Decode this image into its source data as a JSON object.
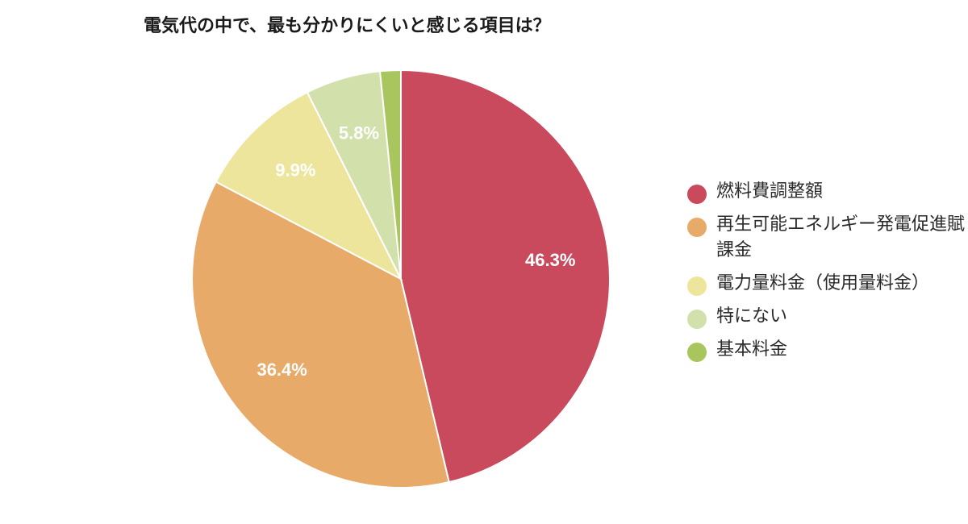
{
  "chart_data": {
    "type": "pie",
    "title": "電気代の中で、最も分かりにくいと感じる項目は？",
    "slices": [
      {
        "label": "燃料費調整額",
        "value": 46.3,
        "value_label": "46.3%",
        "color": "#c84a5c"
      },
      {
        "label": "再生可能エネルギー発電促進賦課金",
        "value": 36.4,
        "value_label": "36.4%",
        "color": "#e8aa68"
      },
      {
        "label": "電力量料金（使用量料金）",
        "value": 9.9,
        "value_label": "9.9%",
        "color": "#ede59b"
      },
      {
        "label": "特にない",
        "value": 5.8,
        "value_label": "5.8%",
        "color": "#d2e1ac"
      },
      {
        "label": "基本料金",
        "value": 1.6,
        "value_label": "",
        "color": "#a9c65e"
      }
    ],
    "legend_position": "right",
    "start_angle": "top",
    "direction": "clockwise"
  }
}
